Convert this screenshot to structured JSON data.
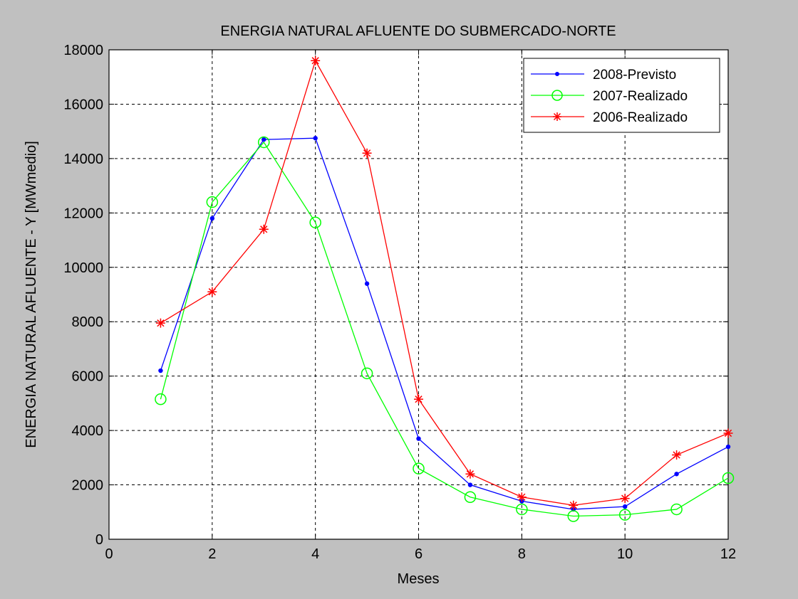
{
  "figure": {
    "background": "#c0c0c0",
    "axes_background": "#ffffff"
  },
  "chart_data": {
    "type": "line",
    "title": "ENERGIA NATURAL AFLUENTE DO SUBMERCADO-NORTE",
    "xlabel": "Meses",
    "ylabel": "ENERGIA NATURAL AFLUENTE - Y [MWmedio]",
    "xlim": [
      0,
      12
    ],
    "ylim": [
      0,
      18000
    ],
    "xticks": [
      0,
      2,
      4,
      6,
      8,
      10,
      12
    ],
    "yticks": [
      0,
      2000,
      4000,
      6000,
      8000,
      10000,
      12000,
      14000,
      16000,
      18000
    ],
    "grid": true,
    "grid_style": "dashed",
    "legend_position": "top-right",
    "x": [
      1,
      2,
      3,
      4,
      5,
      6,
      7,
      8,
      9,
      10,
      11,
      12
    ],
    "series": [
      {
        "name": "2008-Previsto",
        "color": "#0000ff",
        "marker": "dot",
        "values": [
          6200,
          11800,
          14700,
          14750,
          9400,
          3700,
          2000,
          1400,
          1100,
          1200,
          2400,
          3400
        ]
      },
      {
        "name": "2007-Realizado",
        "color": "#00ff00",
        "marker": "circle",
        "values": [
          5150,
          12400,
          14600,
          11650,
          6100,
          2600,
          1550,
          1100,
          850,
          900,
          1100,
          2250
        ]
      },
      {
        "name": "2006-Realizado",
        "color": "#ff0000",
        "marker": "star",
        "values": [
          7950,
          9100,
          11400,
          17600,
          14200,
          5150,
          2400,
          1550,
          1250,
          1500,
          3100,
          3900
        ]
      }
    ]
  }
}
